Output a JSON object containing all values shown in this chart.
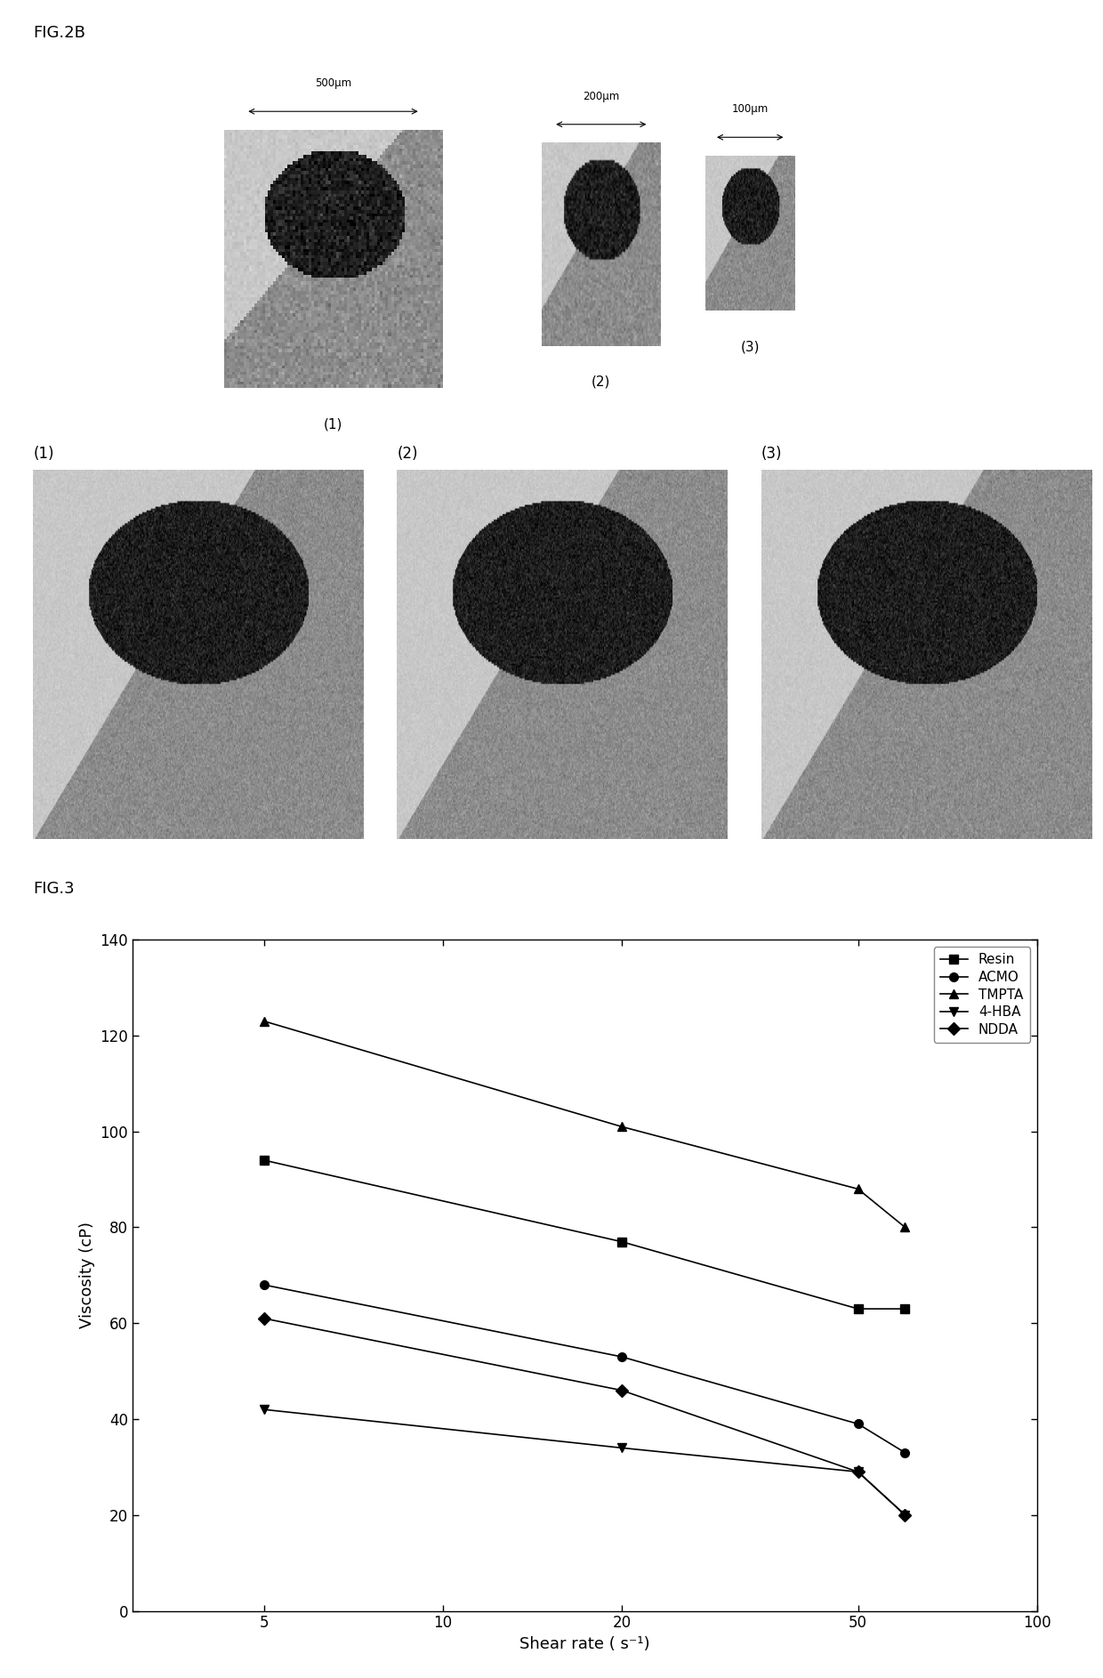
{
  "fig_label_top": "FIG.2B",
  "fig_label_bottom": "FIG.3",
  "chart": {
    "xlabel": "Shear rate ( s⁻¹)",
    "ylabel": "Viscosity (cP)",
    "ylim": [
      0,
      140
    ],
    "yticks": [
      0,
      20,
      40,
      60,
      80,
      100,
      120,
      140
    ],
    "series": [
      {
        "label": "Resin",
        "marker": "s",
        "x": [
          5,
          20,
          50,
          60
        ],
        "y": [
          94,
          77,
          63,
          63
        ]
      },
      {
        "label": "ACMO",
        "marker": "o",
        "x": [
          5,
          20,
          50,
          60
        ],
        "y": [
          68,
          53,
          39,
          33
        ]
      },
      {
        "label": "TMPTA",
        "marker": "^",
        "x": [
          5,
          20,
          50,
          60
        ],
        "y": [
          123,
          101,
          88,
          80
        ]
      },
      {
        "label": "4-HBA",
        "marker": "v",
        "x": [
          5,
          20,
          50,
          60
        ],
        "y": [
          42,
          34,
          29,
          20
        ]
      },
      {
        "label": "NDDA",
        "marker": "D",
        "x": [
          5,
          20,
          50,
          60
        ],
        "y": [
          61,
          46,
          29,
          20
        ]
      }
    ],
    "line_color": "#000000",
    "marker_color": "#000000",
    "marker_size": 7,
    "line_width": 1.2
  },
  "top_overview": {
    "scale_labels": [
      "500μm",
      "200μm",
      "100μm"
    ],
    "item_labels": [
      "(1)",
      "(2)",
      "(3)"
    ]
  },
  "bottom_panels": {
    "labels": [
      "(1)",
      "(2)",
      "(3)"
    ]
  }
}
